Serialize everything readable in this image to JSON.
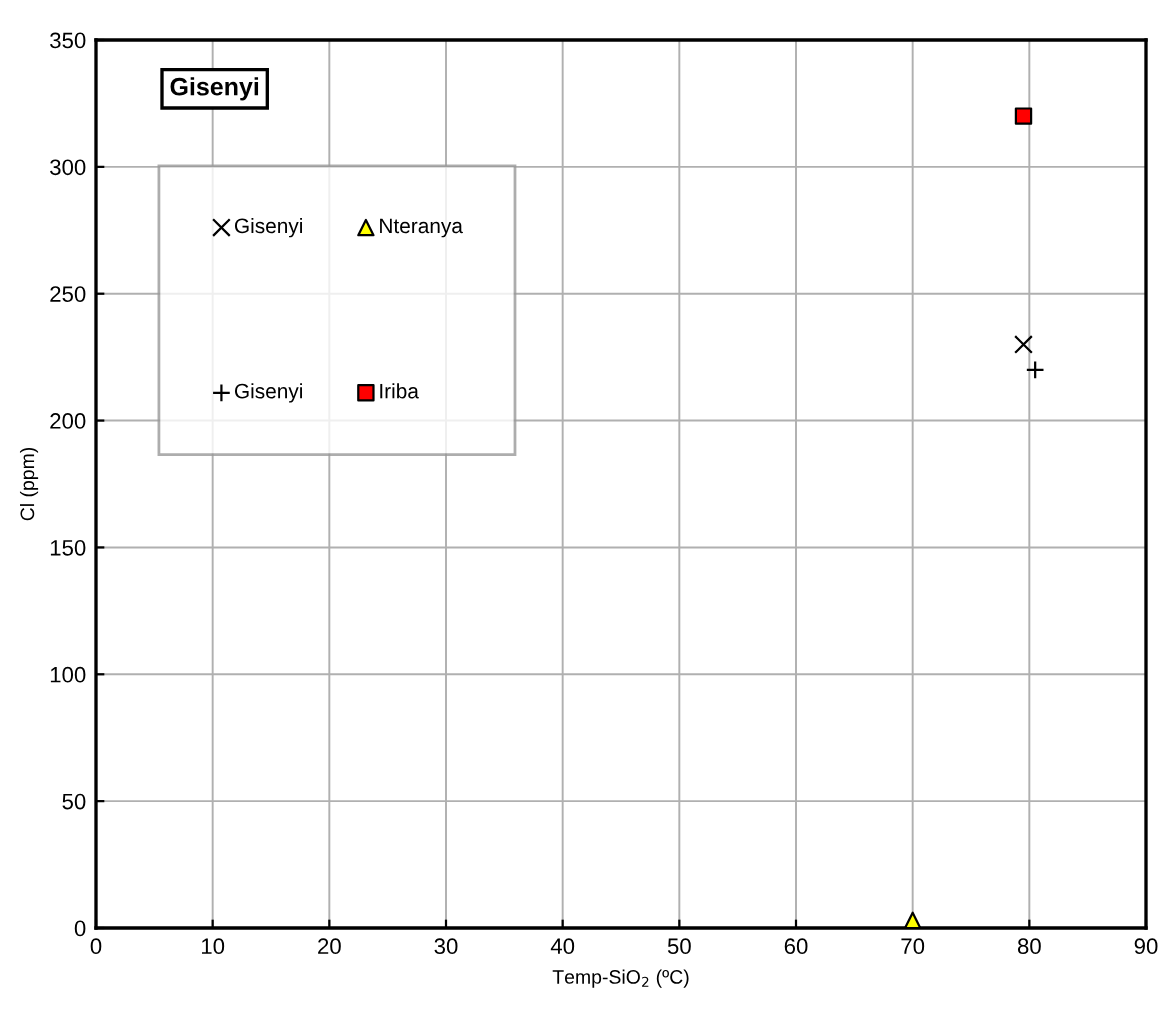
{
  "chart_data": {
    "type": "scatter",
    "title": "Gisenyi",
    "xlabel": "Temp-SiO$_{2}$ (ºC)",
    "ylabel": "Cl (ppm)",
    "xlim": [
      0,
      90
    ],
    "xticks": [
      0,
      10,
      20,
      30,
      40,
      50,
      60,
      70,
      80,
      90
    ],
    "ylim": [
      0,
      350
    ],
    "yticks": [
      0,
      50,
      100,
      150,
      200,
      250,
      300,
      350
    ],
    "grid": true,
    "legend": "top left",
    "series": [
      {
        "name": "Gisenyi",
        "color": "#000000",
        "marker": "cross",
        "x": [
          79.5
        ],
        "values": [
          230
        ]
      },
      {
        "name": "Gisenyi",
        "color": "#000000",
        "marker": "plus",
        "x": [
          80.5
        ],
        "values": [
          220
        ]
      },
      {
        "name": "Nteranya",
        "color": "#ffff00",
        "marker": "triangle",
        "x": [
          70
        ],
        "values": [
          3
        ]
      },
      {
        "name": "Iriba",
        "color": "#ff0000",
        "marker": "square",
        "x": [
          79.5
        ],
        "values": [
          320
        ]
      }
    ]
  }
}
